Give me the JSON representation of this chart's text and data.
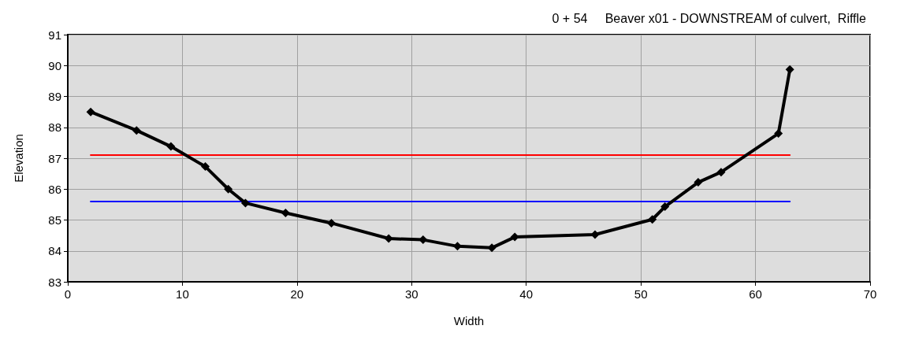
{
  "chart_data": {
    "type": "line",
    "title": "0 + 54     Beaver x01 - DOWNSTREAM of culvert,  Riffle",
    "xlabel": "Width",
    "ylabel": "Elevation",
    "xlim": [
      0,
      70
    ],
    "xticks": [
      0,
      10,
      20,
      30,
      40,
      50,
      60,
      70
    ],
    "ylim": [
      83,
      91
    ],
    "yticks": [
      83,
      84,
      85,
      86,
      87,
      88,
      89,
      90,
      91
    ],
    "grid": true,
    "marker": "diamond",
    "line_style": "solid",
    "series": [
      {
        "color": "#000000",
        "x": [
          2,
          6,
          9,
          12,
          14,
          15.5,
          19,
          23,
          28,
          31,
          34,
          37,
          39,
          46,
          51,
          52.1,
          55,
          57,
          62,
          63
        ],
        "values": [
          88.5,
          87.9,
          87.38,
          86.73,
          86.0,
          85.55,
          85.23,
          84.9,
          84.4,
          84.36,
          84.15,
          84.1,
          84.45,
          84.53,
          85.02,
          85.43,
          86.22,
          86.55,
          87.8,
          89.87
        ]
      },
      {
        "color": "#ff0000",
        "marker": "none",
        "x": [
          2,
          63
        ],
        "values": [
          87.1,
          87.1
        ]
      },
      {
        "color": "#0000ff",
        "marker": "none",
        "x": [
          2,
          63
        ],
        "values": [
          85.6,
          85.6
        ]
      }
    ]
  }
}
